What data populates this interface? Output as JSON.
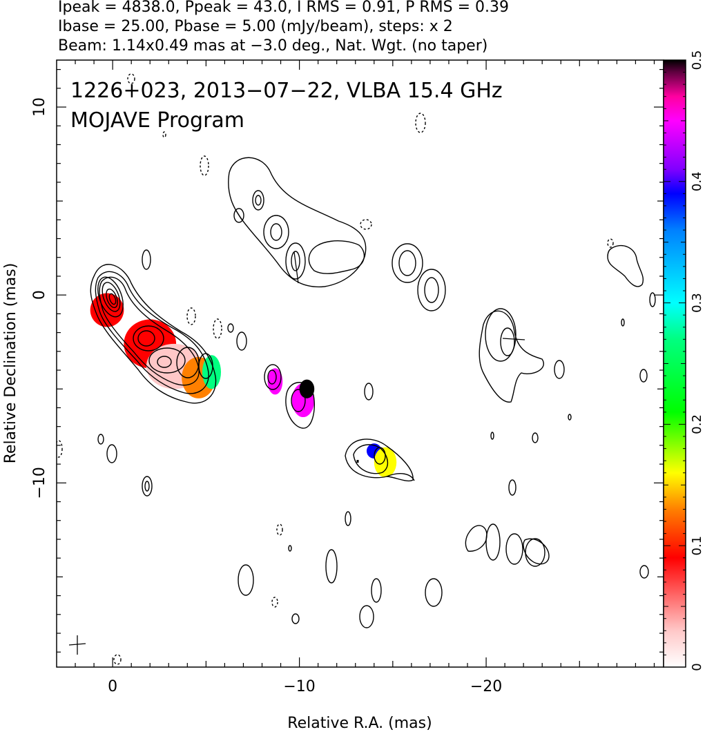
{
  "header": {
    "line1": "Ipeak = 4838.0, Ppeak = 43.0, I RMS = 0.91, P RMS = 0.39",
    "line2": "Ibase = 25.00, Pbase = 5.00 (mJy/beam), steps: x 2",
    "line3": "Beam: 1.14x0.49 mas at −3.0 deg., Nat. Wgt. (no taper)"
  },
  "chart_data": {
    "type": "heatmap",
    "title": "1226+023, 2013−07−22, VLBA 15.4 GHz",
    "subtitle": "MOJAVE Program",
    "xlabel": "Relative R.A. (mas)",
    "ylabel": "Relative Declination (mas)",
    "xlim": [
      3,
      -29.5
    ],
    "ylim": [
      -19.8,
      12.5
    ],
    "x_ticks": [
      {
        "value": 0,
        "label": "0"
      },
      {
        "value": -10,
        "label": "−10"
      },
      {
        "value": -20,
        "label": "−20"
      }
    ],
    "y_ticks": [
      {
        "value": 10,
        "label": "10"
      },
      {
        "value": 0,
        "label": "0"
      },
      {
        "value": -10,
        "label": "−10"
      }
    ],
    "colorbar": {
      "range": [
        0,
        0.5
      ],
      "ticks": [
        {
          "value": 0,
          "label": "0"
        },
        {
          "value": 0.1,
          "label": "0.1"
        },
        {
          "value": 0.2,
          "label": "0.2"
        },
        {
          "value": 0.3,
          "label": "0.3"
        },
        {
          "value": 0.4,
          "label": "0.4"
        },
        {
          "value": 0.5,
          "label": "0.5"
        }
      ],
      "stops": [
        {
          "v": 0.0,
          "color": "#ffffff"
        },
        {
          "v": 0.03,
          "color": "#ffc8c8"
        },
        {
          "v": 0.09,
          "color": "#ff0000"
        },
        {
          "v": 0.13,
          "color": "#ff8000"
        },
        {
          "v": 0.16,
          "color": "#ffff00"
        },
        {
          "v": 0.21,
          "color": "#00ff00"
        },
        {
          "v": 0.27,
          "color": "#00ff80"
        },
        {
          "v": 0.3,
          "color": "#00ffff"
        },
        {
          "v": 0.36,
          "color": "#0080ff"
        },
        {
          "v": 0.39,
          "color": "#0000ff"
        },
        {
          "v": 0.41,
          "color": "#8000ff"
        },
        {
          "v": 0.45,
          "color": "#ff00ff"
        },
        {
          "v": 0.47,
          "color": "#ff00a0"
        },
        {
          "v": 0.49,
          "color": "#600040"
        },
        {
          "v": 0.5,
          "color": "#000000"
        }
      ]
    },
    "polarization_regions": [
      {
        "x": 0.3,
        "y": -0.8,
        "rx": 0.9,
        "ry": 0.9,
        "frac": 0.05
      },
      {
        "x": -2.0,
        "y": -2.6,
        "rx": 1.4,
        "ry": 1.3,
        "frac": 0.07
      },
      {
        "x": -3.3,
        "y": -3.8,
        "rx": 1.5,
        "ry": 1.2,
        "frac": 0.02
      },
      {
        "x": -4.6,
        "y": -4.4,
        "rx": 0.9,
        "ry": 1.1,
        "frac": 0.1
      },
      {
        "x": -5.3,
        "y": -4.1,
        "rx": 0.5,
        "ry": 0.9,
        "frac": 0.25
      },
      {
        "x": -8.7,
        "y": -4.6,
        "rx": 0.4,
        "ry": 0.7,
        "frac": 0.45
      },
      {
        "x": -10.2,
        "y": -5.6,
        "rx": 0.6,
        "ry": 0.9,
        "frac": 0.42
      },
      {
        "x": -10.4,
        "y": -5.0,
        "rx": 0.4,
        "ry": 0.5,
        "frac": 0.5
      },
      {
        "x": -14.0,
        "y": -8.3,
        "rx": 0.4,
        "ry": 0.4,
        "frac": 0.38
      },
      {
        "x": -14.6,
        "y": -8.9,
        "rx": 0.6,
        "ry": 0.8,
        "frac": 0.15
      }
    ],
    "contours": {
      "core_jet": {
        "x": [
          0.5,
          -5.8
        ],
        "y": [
          0.6,
          -4.8
        ]
      },
      "knot_a": {
        "x": -8.8,
        "y": -4.6
      },
      "knot_b": {
        "x": -10.2,
        "y": -5.6
      },
      "knot_c": {
        "x": -14.4,
        "y": -8.7
      },
      "upper_jet": {
        "x": [
          -7.0,
          -13.5
        ],
        "y": [
          6.5,
          2.0
        ]
      },
      "hatched_pair": {
        "x": -16.5,
        "y": 1.2
      },
      "hatched_mid": {
        "x": -21.3,
        "y": -2.6
      },
      "far_right": {
        "x": -27.5,
        "y": 1.5
      }
    }
  }
}
